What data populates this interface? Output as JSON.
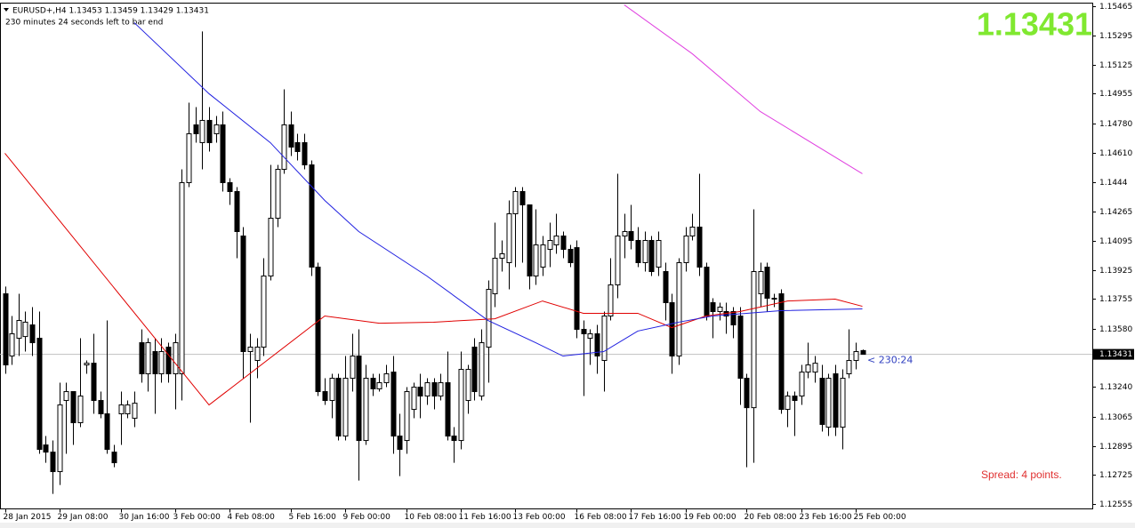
{
  "chart_data": {
    "type": "candlestick",
    "title": "EURUSD+,H4 1.13453 1.13459 1.13429 1.13431",
    "subtitle": "230 minutes 24 seconds left to bar end",
    "last_price": 1.13431,
    "timer": "< 230:24",
    "spread": "Spread: 4 points.",
    "up_color": "#ffffff",
    "down_color": "#000000",
    "grid": false,
    "ylim": [
      1.12527,
      1.15485
    ],
    "yticks": [
      1.15465,
      1.15295,
      1.15125,
      1.14955,
      {
        "value": 1.1478,
        "label": "1.14780"
      },
      {
        "value": 1.1461,
        "label": "1.14610"
      },
      1.1444,
      1.14265,
      1.14095,
      1.13925,
      1.13755,
      {
        "value": 1.1358,
        "label": "1.13580"
      },
      {
        "value": 1.1324,
        "label": "1.13240"
      },
      1.13065,
      1.12895,
      1.12725,
      1.12555
    ],
    "categories": [
      "28 Jan 2015",
      null,
      null,
      null,
      null,
      null,
      null,
      null,
      "29 Jan 08:00",
      null,
      null,
      null,
      null,
      null,
      null,
      null,
      null,
      "30 Jan 16:00",
      null,
      null,
      null,
      null,
      null,
      null,
      null,
      "3 Feb 00:00",
      null,
      null,
      null,
      null,
      null,
      null,
      null,
      "4 Feb 08:00",
      null,
      null,
      null,
      null,
      null,
      null,
      null,
      null,
      "5 Feb 16:00",
      null,
      null,
      null,
      null,
      null,
      null,
      null,
      "9 Feb 00:00",
      null,
      null,
      null,
      null,
      null,
      null,
      null,
      null,
      "10 Feb 08:00",
      null,
      null,
      null,
      null,
      null,
      null,
      null,
      "11 Feb 16:00",
      null,
      null,
      null,
      null,
      null,
      null,
      null,
      "13 Feb 00:00",
      null,
      null,
      null,
      null,
      null,
      null,
      null,
      null,
      "16 Feb 08:00",
      null,
      null,
      null,
      null,
      null,
      null,
      null,
      "17 Feb 16:00",
      null,
      null,
      null,
      null,
      null,
      null,
      null,
      "19 Feb 00:00",
      null,
      null,
      null,
      null,
      null,
      null,
      null,
      null,
      "20 Feb 08:00",
      null,
      null,
      null,
      null,
      null,
      null,
      null,
      "23 Feb 16:00",
      null,
      null,
      null,
      null,
      null,
      null,
      null,
      "25 Feb 00:00",
      null
    ],
    "open": [
      1.13785,
      1.13421,
      1.13525,
      1.13535,
      1.13603,
      1.13525,
      1.12901,
      1.12859,
      1.12745,
      1.13161,
      1.13213,
      1.13031,
      1.13369,
      1.13379,
      1.13161,
      1.13083,
      1.12859,
      1.13083,
      1.13083,
      1.13057,
      1.13499,
      1.13317,
      1.13447,
      1.13317,
      1.13473,
      1.13317,
      1.13317,
      1.14435,
      1.14773,
      1.14669,
      1.14799,
      1.14721,
      1.14773,
      1.14435,
      1.14383,
      1.14123,
      1.13447,
      1.13395,
      1.13473,
      1.13889,
      1.14227,
      1.14513,
      1.14773,
      1.14669,
      1.14669,
      1.14539,
      1.13941,
      1.13213,
      1.13161,
      1.13291,
      1.12953,
      1.13291,
      1.13421,
      1.12927,
      1.13291,
      1.13229,
      1.13265,
      1.13327,
      1.12953,
      1.12927,
      1.13109,
      1.13239,
      1.13187,
      1.13265,
      1.13187,
      1.13265,
      1.12953,
      1.12927,
      1.13161,
      1.13473,
      1.13187,
      1.13473,
      1.13785,
      1.13993,
      1.13967,
      1.14253,
      1.14383,
      1.14305,
      1.13889,
      1.13941,
      1.14045,
      1.14071,
      1.14123,
      1.14045,
      1.14055,
      1.13577,
      1.13525,
      1.13551,
      1.13395,
      1.13655,
      1.13837,
      1.14123,
      1.14149,
      1.14097,
      1.13967,
      1.14097,
      1.13941,
      1.13915,
      1.13733,
      1.13421,
      1.13967,
      1.14123,
      1.14175,
      1.13941,
      1.13733,
      1.13681,
      1.13681,
      1.13681,
      1.13655,
      1.13291,
      1.13119,
      1.13785,
      1.13941,
      1.13759,
      1.13785,
      1.13109,
      1.13187,
      1.13187,
      1.13327,
      1.13327,
      1.13291,
      1.13005,
      1.13317,
      1.13005,
      1.13317,
      1.13395,
      1.13453
    ],
    "high": [
      1.13827,
      1.13655,
      1.13785,
      1.13681,
      1.13707,
      1.13681,
      1.12953,
      1.12927,
      1.13265,
      1.13265,
      1.13213,
      1.13525,
      1.13395,
      1.13551,
      1.13213,
      1.13629,
      1.12901,
      1.13213,
      1.13161,
      1.13213,
      1.13577,
      1.13525,
      1.13525,
      1.13525,
      1.13499,
      1.13551,
      1.14513,
      1.14903,
      1.14877,
      1.15319,
      1.14877,
      1.14825,
      1.14851,
      1.14461,
      1.14409,
      1.14175,
      1.13551,
      1.13525,
      1.13993,
      1.14539,
      1.14539,
      1.14981,
      1.14851,
      1.14721,
      1.14721,
      1.14565,
      1.13967,
      1.13291,
      1.13317,
      1.13317,
      1.13421,
      1.13551,
      1.13577,
      1.13369,
      1.13317,
      1.13317,
      1.13369,
      1.13421,
      1.13083,
      1.13239,
      1.13265,
      1.13317,
      1.13291,
      1.13291,
      1.13317,
      1.13447,
      1.13005,
      1.13447,
      1.13369,
      1.13525,
      1.13577,
      1.13863,
      1.14201,
      1.14097,
      1.14331,
      1.14409,
      1.14409,
      1.14305,
      1.14279,
      1.14123,
      1.14201,
      1.14253,
      1.14149,
      1.14071,
      1.14097,
      1.13629,
      1.13577,
      1.13603,
      1.13681,
      1.13993,
      1.14487,
      1.14253,
      1.14305,
      1.14175,
      1.14149,
      1.14123,
      1.14149,
      1.13967,
      1.13785,
      1.13993,
      1.14175,
      1.14253,
      1.14487,
      1.13967,
      1.13759,
      1.13733,
      1.13733,
      1.13707,
      1.13707,
      1.13317,
      1.14279,
      1.13967,
      1.13967,
      1.13785,
      1.13811,
      1.13213,
      1.13213,
      1.13369,
      1.13499,
      1.13421,
      1.13369,
      1.13317,
      1.13369,
      1.13343,
      1.13577,
      1.13499,
      1.13459
    ],
    "low": [
      1.13317,
      1.13369,
      1.13421,
      1.13447,
      1.13421,
      1.12849,
      1.12797,
      1.12615,
      1.12667,
      1.12849,
      1.12901,
      1.13005,
      1.13317,
      1.13083,
      1.13057,
      1.12849,
      1.12771,
      1.12901,
      1.13057,
      1.13005,
      1.13265,
      1.13213,
      1.13083,
      1.13265,
      1.13265,
      1.13109,
      1.13161,
      1.14409,
      1.14669,
      1.14513,
      1.14617,
      1.14669,
      1.14383,
      1.14305,
      1.13993,
      1.13291,
      1.13031,
      1.13291,
      1.13421,
      1.13863,
      1.14175,
      1.14487,
      1.14591,
      1.14565,
      1.14513,
      1.13889,
      1.13187,
      1.13135,
      1.13057,
      1.12927,
      1.12927,
      1.13213,
      1.12693,
      1.12901,
      1.13187,
      1.13213,
      1.13239,
      1.12849,
      1.12719,
      1.12849,
      1.13057,
      1.13057,
      1.13135,
      1.13109,
      1.13161,
      1.12927,
      1.12797,
      1.12875,
      1.13083,
      1.13161,
      1.13161,
      1.13265,
      1.13707,
      1.13915,
      1.13811,
      1.13941,
      1.13967,
      1.13811,
      1.13837,
      1.13889,
      1.13941,
      1.14019,
      1.13993,
      1.13941,
      1.13525,
      1.13187,
      1.13369,
      1.13317,
      1.13213,
      1.13629,
      1.13759,
      1.13993,
      1.14045,
      1.13941,
      1.13915,
      1.13889,
      1.13889,
      1.13629,
      1.13317,
      1.13369,
      1.13915,
      1.14097,
      1.13889,
      1.13629,
      1.13525,
      1.13629,
      1.13551,
      1.13525,
      1.13135,
      1.12771,
      1.12797,
      1.13707,
      1.13681,
      1.13707,
      1.13083,
      1.13005,
      1.12953,
      1.13135,
      1.13291,
      1.13265,
      1.12979,
      1.12953,
      1.12953,
      1.12875,
      1.13291,
      1.13343,
      1.13429
    ],
    "close": [
      1.13369,
      1.13551,
      1.13629,
      1.13619,
      1.13499,
      1.12875,
      1.12859,
      1.12745,
      1.13135,
      1.13213,
      1.13031,
      1.13187,
      1.13379,
      1.13161,
      1.13083,
      1.12875,
      1.12797,
      1.13135,
      1.13135,
      1.13145,
      1.13317,
      1.13499,
      1.13317,
      1.13447,
      1.13317,
      1.13499,
      1.14435,
      1.14721,
      1.14721,
      1.14799,
      1.14669,
      1.14773,
      1.14435,
      1.14383,
      1.14149,
      1.13447,
      1.13473,
      1.13473,
      1.13889,
      1.14227,
      1.14513,
      1.14773,
      1.14643,
      1.14617,
      1.14539,
      1.13941,
      1.13213,
      1.13161,
      1.13291,
      1.12953,
      1.13291,
      1.13421,
      1.12927,
      1.13291,
      1.13229,
      1.13265,
      1.13317,
      1.12953,
      1.12875,
      1.13213,
      1.13239,
      1.13187,
      1.13265,
      1.13187,
      1.13265,
      1.12953,
      1.12927,
      1.13343,
      1.13343,
      1.13213,
      1.13499,
      1.13811,
      1.13993,
      1.14019,
      1.14253,
      1.14383,
      1.14305,
      1.13889,
      1.14071,
      1.14071,
      1.14097,
      1.14123,
      1.14045,
      1.13967,
      1.13577,
      1.13551,
      1.13551,
      1.13421,
      1.13655,
      1.13837,
      1.14123,
      1.14149,
      1.14097,
      1.13967,
      1.14097,
      1.13915,
      1.14097,
      1.13733,
      1.13421,
      1.13967,
      1.14123,
      1.14175,
      1.13941,
      1.13655,
      1.13681,
      1.13707,
      1.13655,
      1.13603,
      1.13291,
      1.13119,
      1.13915,
      1.13915,
      1.13759,
      1.13759,
      1.13109,
      1.13187,
      1.13161,
      1.13327,
      1.13369,
      1.13379,
      1.13021,
      1.13291,
      1.13005,
      1.13291,
      1.13395,
      1.13447,
      1.13431
    ],
    "series": [
      {
        "color": "#e00000",
        "x": [
          0,
          30,
          47,
          55,
          63,
          72,
          79,
          85,
          93,
          98,
          103,
          108,
          115,
          122,
          126
        ],
        "values": [
          1.14607,
          1.13135,
          1.13655,
          1.13613,
          1.13619,
          1.13639,
          1.13743,
          1.13671,
          1.13671,
          1.13587,
          1.13655,
          1.13681,
          1.13743,
          1.13754,
          1.13712
        ]
      },
      {
        "color": "#2020e0",
        "x": [
          19,
          30,
          39,
          47,
          52,
          62,
          71,
          78,
          82,
          88,
          93,
          99,
          104,
          109,
          114,
          126
        ],
        "values": [
          1.15371,
          1.14955,
          1.14669,
          1.14331,
          1.14149,
          1.13889,
          1.13629,
          1.13499,
          1.13421,
          1.13447,
          1.13567,
          1.13619,
          1.13655,
          1.13671,
          1.13686,
          1.13697
        ]
      },
      {
        "color": "#e040e0",
        "x": [
          91,
          101,
          111,
          126
        ],
        "values": [
          1.15475,
          1.15189,
          1.14851,
          1.14487
        ]
      }
    ]
  }
}
